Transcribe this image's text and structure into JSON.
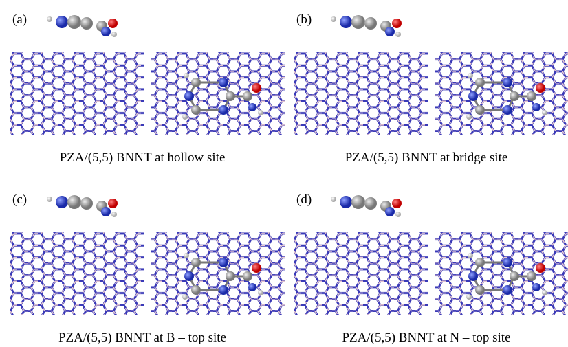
{
  "panels": [
    {
      "label": "(a)",
      "caption": "PZA/(5,5) BNNT at hollow site"
    },
    {
      "label": "(b)",
      "caption": "PZA/(5,5) BNNT at bridge site"
    },
    {
      "label": "(c)",
      "caption": "PZA/(5,5) BNNT at B – top site"
    },
    {
      "label": "(d)",
      "caption": "PZA/(5,5) BNNT at N – top site"
    }
  ]
}
